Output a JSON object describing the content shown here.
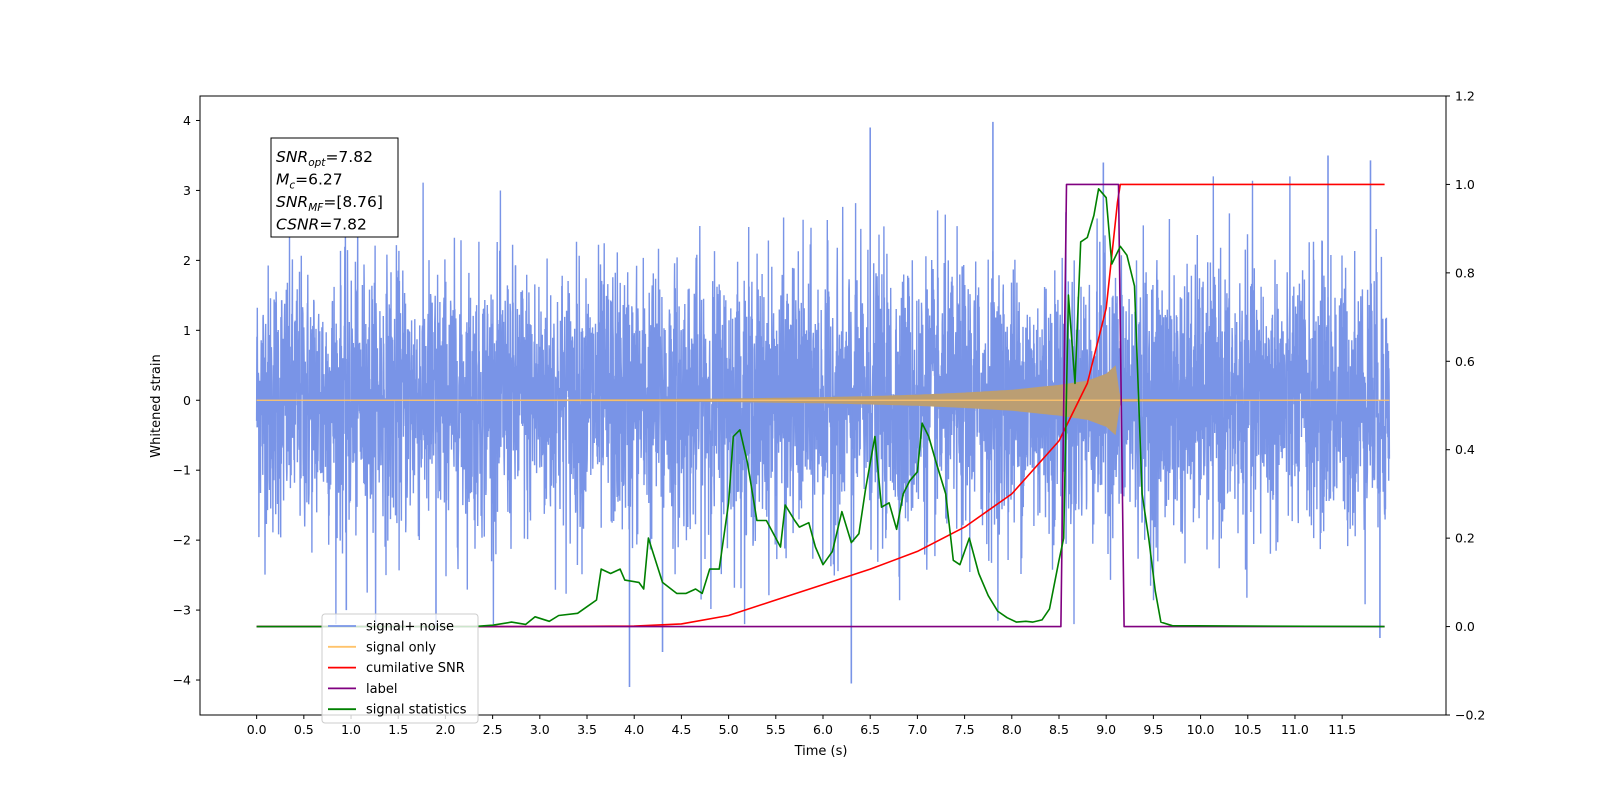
{
  "chart_data": {
    "type": "line",
    "title": "",
    "xlabel": "Time (s)",
    "ylabel": "Whitened strain",
    "xlim": [
      -0.6,
      12.6
    ],
    "ylim": [
      -4.5,
      4.35
    ],
    "ylim_right": [
      -0.2,
      1.2
    ],
    "xticks": [
      "0.0",
      "0.5",
      "1.0",
      "1.5",
      "2.0",
      "2.5",
      "3.0",
      "3.5",
      "4.0",
      "4.5",
      "5.0",
      "5.5",
      "6.0",
      "6.5",
      "7.0",
      "7.5",
      "8.0",
      "8.5",
      "9.0",
      "9.5",
      "10.0",
      "10.5",
      "11.0",
      "11.5"
    ],
    "yticks_left": [
      "4",
      "3",
      "2",
      "1",
      "0",
      "−1",
      "−2",
      "−3",
      "−4"
    ],
    "yticks_right": [
      "1.2",
      "1.0",
      "0.8",
      "0.6",
      "0.4",
      "0.2",
      "0.0",
      "−0.2"
    ],
    "grid": false,
    "legend_position": "lower-left",
    "annotation_lines": [
      {
        "base": "SNR",
        "sub": "opt",
        "value": "=7.82"
      },
      {
        "base": "M",
        "sub": "c",
        "value": "=6.27"
      },
      {
        "base": "SNR",
        "sub": "MF",
        "value": "=[8.76]"
      },
      {
        "base": "CSNR",
        "sub": "",
        "value": "=7.82"
      }
    ],
    "series": [
      {
        "name": "signal+ noise",
        "axis": "left",
        "color": "#7994e7",
        "note": "whitened noisy strain, fluctuates roughly within ±2.5 with spikes near ±4",
        "x_range": [
          0.0,
          12.0
        ],
        "spike_points": [
          [
            0.95,
            -3.0
          ],
          [
            1.9,
            -3.3
          ],
          [
            3.95,
            -4.1
          ],
          [
            4.3,
            -3.6
          ],
          [
            6.3,
            -4.05
          ],
          [
            6.5,
            3.9
          ],
          [
            7.8,
            3.98
          ],
          [
            8.97,
            3.4
          ],
          [
            11.35,
            3.5
          ],
          [
            11.8,
            3.43
          ],
          [
            11.9,
            -3.4
          ]
        ]
      },
      {
        "name": "signal only",
        "axis": "left",
        "color": "#ffc36b",
        "note": "chirp envelope amplitude",
        "envelope": [
          [
            0,
            0.005
          ],
          [
            1,
            0.006
          ],
          [
            2,
            0.008
          ],
          [
            3,
            0.011
          ],
          [
            4,
            0.016
          ],
          [
            5,
            0.025
          ],
          [
            5.5,
            0.035
          ],
          [
            6,
            0.045
          ],
          [
            6.5,
            0.06
          ],
          [
            7,
            0.08
          ],
          [
            7.5,
            0.11
          ],
          [
            8,
            0.15
          ],
          [
            8.5,
            0.22
          ],
          [
            8.8,
            0.28
          ],
          [
            9.0,
            0.38
          ],
          [
            9.1,
            0.5
          ],
          [
            9.15,
            0.02
          ],
          [
            12,
            0.0
          ]
        ]
      },
      {
        "name": "cumilative SNR",
        "axis": "right",
        "color": "#ff0000",
        "points": [
          [
            0,
            0
          ],
          [
            3,
            0
          ],
          [
            4,
            0.001
          ],
          [
            4.5,
            0.006
          ],
          [
            5,
            0.025
          ],
          [
            5.5,
            0.06
          ],
          [
            6,
            0.095
          ],
          [
            6.5,
            0.13
          ],
          [
            7,
            0.17
          ],
          [
            7.5,
            0.225
          ],
          [
            8,
            0.3
          ],
          [
            8.5,
            0.42
          ],
          [
            8.8,
            0.55
          ],
          [
            9.0,
            0.72
          ],
          [
            9.12,
            0.96
          ],
          [
            9.15,
            1.0
          ],
          [
            11.95,
            1.0
          ]
        ]
      },
      {
        "name": "label",
        "axis": "right",
        "color": "#800080",
        "points": [
          [
            0,
            0
          ],
          [
            8.52,
            0
          ],
          [
            8.58,
            1.0
          ],
          [
            9.13,
            1.0
          ],
          [
            9.19,
            0
          ],
          [
            11.95,
            0
          ]
        ]
      },
      {
        "name": "signal statistics",
        "axis": "right",
        "color": "#008000",
        "points": [
          [
            0,
            0
          ],
          [
            2.3,
            0
          ],
          [
            2.5,
            0.003
          ],
          [
            2.7,
            0.01
          ],
          [
            2.85,
            0.005
          ],
          [
            2.95,
            0.022
          ],
          [
            3.1,
            0.012
          ],
          [
            3.2,
            0.025
          ],
          [
            3.4,
            0.03
          ],
          [
            3.5,
            0.045
          ],
          [
            3.6,
            0.06
          ],
          [
            3.65,
            0.13
          ],
          [
            3.75,
            0.12
          ],
          [
            3.85,
            0.13
          ],
          [
            3.9,
            0.105
          ],
          [
            4.05,
            0.1
          ],
          [
            4.1,
            0.085
          ],
          [
            4.15,
            0.2
          ],
          [
            4.3,
            0.1
          ],
          [
            4.45,
            0.075
          ],
          [
            4.55,
            0.075
          ],
          [
            4.65,
            0.085
          ],
          [
            4.72,
            0.075
          ],
          [
            4.8,
            0.13
          ],
          [
            4.9,
            0.13
          ],
          [
            5.0,
            0.28
          ],
          [
            5.05,
            0.43
          ],
          [
            5.12,
            0.445
          ],
          [
            5.2,
            0.37
          ],
          [
            5.3,
            0.24
          ],
          [
            5.4,
            0.24
          ],
          [
            5.5,
            0.2
          ],
          [
            5.55,
            0.18
          ],
          [
            5.6,
            0.275
          ],
          [
            5.7,
            0.24
          ],
          [
            5.75,
            0.225
          ],
          [
            5.85,
            0.235
          ],
          [
            5.92,
            0.18
          ],
          [
            6.0,
            0.14
          ],
          [
            6.1,
            0.17
          ],
          [
            6.2,
            0.26
          ],
          [
            6.3,
            0.19
          ],
          [
            6.38,
            0.21
          ],
          [
            6.45,
            0.31
          ],
          [
            6.55,
            0.43
          ],
          [
            6.62,
            0.27
          ],
          [
            6.7,
            0.28
          ],
          [
            6.78,
            0.22
          ],
          [
            6.85,
            0.3
          ],
          [
            6.92,
            0.33
          ],
          [
            7.0,
            0.35
          ],
          [
            7.05,
            0.46
          ],
          [
            7.12,
            0.43
          ],
          [
            7.2,
            0.37
          ],
          [
            7.3,
            0.3
          ],
          [
            7.38,
            0.15
          ],
          [
            7.45,
            0.14
          ],
          [
            7.55,
            0.2
          ],
          [
            7.65,
            0.12
          ],
          [
            7.75,
            0.07
          ],
          [
            7.85,
            0.035
          ],
          [
            7.95,
            0.02
          ],
          [
            8.05,
            0.01
          ],
          [
            8.15,
            0.012
          ],
          [
            8.22,
            0.01
          ],
          [
            8.32,
            0.015
          ],
          [
            8.4,
            0.04
          ],
          [
            8.5,
            0.15
          ],
          [
            8.55,
            0.2
          ],
          [
            8.6,
            0.75
          ],
          [
            8.67,
            0.55
          ],
          [
            8.73,
            0.87
          ],
          [
            8.8,
            0.88
          ],
          [
            8.87,
            0.93
          ],
          [
            8.92,
            0.99
          ],
          [
            9.0,
            0.97
          ],
          [
            9.06,
            0.82
          ],
          [
            9.15,
            0.86
          ],
          [
            9.22,
            0.84
          ],
          [
            9.3,
            0.77
          ],
          [
            9.38,
            0.3
          ],
          [
            9.45,
            0.2
          ],
          [
            9.52,
            0.08
          ],
          [
            9.58,
            0.01
          ],
          [
            9.7,
            0.002
          ],
          [
            11.95,
            0
          ]
        ]
      }
    ]
  }
}
